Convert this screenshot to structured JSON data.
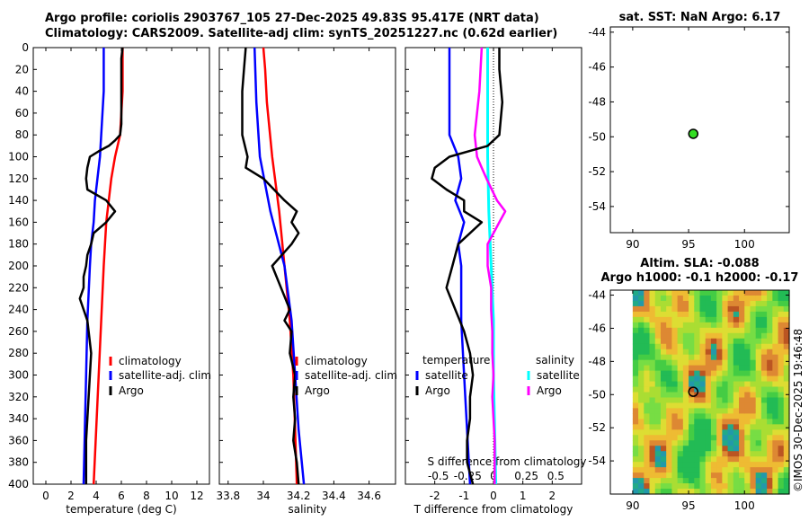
{
  "header": {
    "line1": "Argo profile: coriolis 2903767_105 27-Dec-2025 49.83S 95.417E (NRT data)",
    "line2": "Climatology: CARS2009. Satellite-adj clim: synTS_20251227.nc (0.62d earlier)"
  },
  "credit": "©IMOS 30-Dec-2025 19:46:48",
  "colors": {
    "argo": "#000000",
    "clim": "#ff0000",
    "sat_t": "#0000ff",
    "sat_s": "#00ffff",
    "argo_s": "#ff00ff",
    "marker": "#33dd22"
  },
  "chart_data": [
    {
      "id": "temperature",
      "type": "line",
      "xlabel": "temperature (deg C)",
      "xlim": [
        -1,
        13
      ],
      "xticks": [
        "0",
        "2",
        "4",
        "6",
        "8",
        "10",
        "12"
      ],
      "xtick_values": [
        0,
        2,
        4,
        6,
        8,
        10,
        12
      ],
      "ylim": [
        0,
        400
      ],
      "yticks": [
        "0",
        "20",
        "40",
        "60",
        "80",
        "100",
        "120",
        "140",
        "160",
        "180",
        "200",
        "220",
        "240",
        "260",
        "280",
        "300",
        "320",
        "340",
        "360",
        "380",
        "400"
      ],
      "ytick_values": [
        0,
        20,
        40,
        60,
        80,
        100,
        120,
        140,
        160,
        180,
        200,
        220,
        240,
        260,
        280,
        300,
        320,
        340,
        360,
        380,
        400
      ],
      "legend": [
        "climatology",
        "satellite-adj. clim",
        "Argo"
      ],
      "series": [
        {
          "name": "climatology",
          "depth": [
            0,
            20,
            40,
            60,
            80,
            90,
            100,
            120,
            140,
            160,
            200,
            250,
            300,
            350,
            400
          ],
          "values": [
            6.1,
            6.1,
            6.1,
            6.0,
            5.9,
            5.7,
            5.5,
            5.2,
            5.0,
            4.8,
            4.6,
            4.4,
            4.2,
            4.0,
            3.8
          ]
        },
        {
          "name": "satellite-adj. clim",
          "depth": [
            0,
            20,
            40,
            60,
            80,
            100,
            120,
            140,
            160,
            180,
            200,
            250,
            300,
            350,
            400
          ],
          "values": [
            4.6,
            4.6,
            4.6,
            4.5,
            4.4,
            4.3,
            4.1,
            3.9,
            3.8,
            3.6,
            3.5,
            3.3,
            3.2,
            3.1,
            3.0
          ]
        },
        {
          "name": "Argo",
          "depth": [
            0,
            10,
            30,
            50,
            70,
            80,
            85,
            90,
            95,
            100,
            105,
            110,
            120,
            130,
            140,
            150,
            160,
            170,
            180,
            190,
            200,
            210,
            220,
            230,
            240,
            250,
            260,
            280,
            300,
            320,
            340,
            360,
            380,
            400
          ],
          "values": [
            6.1,
            6.0,
            6.0,
            6.0,
            6.0,
            5.9,
            5.5,
            5.0,
            4.2,
            3.5,
            3.4,
            3.3,
            3.2,
            3.3,
            4.8,
            5.5,
            4.8,
            3.8,
            3.6,
            3.3,
            3.2,
            3.0,
            3.0,
            2.7,
            3.0,
            3.3,
            3.4,
            3.6,
            3.5,
            3.4,
            3.3,
            3.2,
            3.2,
            3.2
          ]
        }
      ]
    },
    {
      "id": "salinity",
      "type": "line",
      "xlabel": "salinity",
      "xlim": [
        33.75,
        34.75
      ],
      "xticks": [
        "33.8",
        "34",
        "34.2",
        "34.4",
        "34.6"
      ],
      "xtick_values": [
        33.8,
        34.0,
        34.2,
        34.4,
        34.6
      ],
      "ylim": [
        0,
        400
      ],
      "legend": [
        "climatology",
        "satellite-adj. clim",
        "Argo"
      ],
      "series": [
        {
          "name": "climatology",
          "depth": [
            0,
            20,
            50,
            100,
            150,
            200,
            250,
            300,
            350,
            400
          ],
          "values": [
            34.0,
            34.01,
            34.02,
            34.05,
            34.09,
            34.12,
            34.15,
            34.17,
            34.18,
            34.19
          ]
        },
        {
          "name": "satellite-adj. clim",
          "depth": [
            0,
            50,
            100,
            150,
            200,
            250,
            300,
            350,
            400
          ],
          "values": [
            33.95,
            33.96,
            33.98,
            34.04,
            34.12,
            34.16,
            34.18,
            34.2,
            34.23
          ]
        },
        {
          "name": "Argo",
          "depth": [
            0,
            20,
            40,
            60,
            80,
            100,
            110,
            120,
            140,
            150,
            160,
            170,
            180,
            200,
            220,
            240,
            250,
            260,
            280,
            300,
            320,
            340,
            360,
            380,
            400
          ],
          "values": [
            33.9,
            33.89,
            33.88,
            33.88,
            33.88,
            33.91,
            33.9,
            34.0,
            34.12,
            34.19,
            34.16,
            34.2,
            34.16,
            34.05,
            34.1,
            34.15,
            34.12,
            34.16,
            34.15,
            34.18,
            34.17,
            34.18,
            34.17,
            34.19,
            34.2
          ]
        }
      ]
    },
    {
      "id": "difference",
      "type": "line",
      "xlabel": "T difference from climatology",
      "xlim": [
        -3,
        3
      ],
      "xticks": [
        "-2",
        "-1",
        "0",
        "1",
        "2"
      ],
      "xtick_values": [
        -2,
        -1,
        0,
        1,
        2
      ],
      "top_xlabel": "S difference from climatology",
      "top_xticks": [
        "-0.5",
        "-0.25",
        "0",
        "0.25",
        "0.5"
      ],
      "top_xtick_values": [
        -0.5,
        -0.25,
        0,
        0.25,
        0.5
      ],
      "top_xlim": [
        -0.75,
        0.75
      ],
      "ylim": [
        0,
        400
      ],
      "legend_left_title": "temperature",
      "legend_right_title": "salinity",
      "legend_left": [
        "satellite",
        "Argo"
      ],
      "legend_right": [
        "satellite",
        "Argo"
      ],
      "series": [
        {
          "name": "temperature satellite",
          "axis": "T",
          "depth": [
            0,
            20,
            40,
            60,
            80,
            100,
            120,
            140,
            160,
            180,
            200,
            250,
            300,
            350,
            400
          ],
          "values": [
            -1.5,
            -1.5,
            -1.5,
            -1.5,
            -1.5,
            -1.2,
            -1.1,
            -1.3,
            -1.0,
            -1.2,
            -1.1,
            -1.1,
            -1.0,
            -0.9,
            -0.8
          ]
        },
        {
          "name": "temperature Argo",
          "axis": "T",
          "depth": [
            0,
            20,
            50,
            80,
            90,
            100,
            110,
            120,
            130,
            140,
            150,
            160,
            180,
            200,
            220,
            240,
            260,
            280,
            300,
            320,
            340,
            360,
            380,
            400
          ],
          "values": [
            0.2,
            0.2,
            0.3,
            0.2,
            -0.2,
            -1.5,
            -2.0,
            -2.1,
            -1.6,
            -1.0,
            -1.0,
            -0.4,
            -1.2,
            -1.4,
            -1.6,
            -1.3,
            -1.0,
            -0.8,
            -0.7,
            -0.8,
            -0.8,
            -0.9,
            -0.9,
            -0.7
          ]
        },
        {
          "name": "salinity satellite",
          "axis": "S",
          "depth": [
            0,
            50,
            100,
            150,
            200,
            250,
            300,
            350,
            400
          ],
          "values": [
            -0.05,
            -0.05,
            -0.05,
            -0.04,
            -0.02,
            0.0,
            0.0,
            0.01,
            0.02
          ]
        },
        {
          "name": "salinity Argo",
          "axis": "S",
          "depth": [
            0,
            20,
            40,
            60,
            80,
            100,
            110,
            120,
            140,
            150,
            160,
            180,
            200,
            220,
            240,
            260,
            280,
            300,
            320,
            340,
            360,
            380,
            400
          ],
          "values": [
            -0.1,
            -0.11,
            -0.12,
            -0.14,
            -0.16,
            -0.14,
            -0.1,
            -0.06,
            0.03,
            0.1,
            0.05,
            -0.05,
            -0.05,
            -0.02,
            -0.02,
            -0.01,
            -0.01,
            0.0,
            -0.01,
            0.0,
            0.01,
            0.01,
            0.01
          ]
        }
      ]
    },
    {
      "id": "sst-map",
      "type": "scatter",
      "title": "sat. SST: NaN Argo: 6.17",
      "xlim": [
        88,
        104
      ],
      "ylim": [
        -55.5,
        -43.7
      ],
      "xticks": [
        "90",
        "95",
        "100"
      ],
      "xtick_values": [
        90,
        95,
        100
      ],
      "yticks": [
        "-44",
        "-46",
        "-48",
        "-50",
        "-52",
        "-54"
      ],
      "ytick_values": [
        -44,
        -46,
        -48,
        -50,
        -52,
        -54
      ],
      "points": [
        {
          "lon": 95.417,
          "lat": -49.83
        }
      ]
    },
    {
      "id": "sla-map",
      "type": "heatmap",
      "title1": "Altim. SLA: -0.088",
      "title2": "Argo h1000: -0.1 h2000: -0.17",
      "xlim": [
        88,
        104
      ],
      "ylim": [
        -56,
        -43.7
      ],
      "xticks": [
        "90",
        "95",
        "100"
      ],
      "xtick_values": [
        90,
        95,
        100
      ],
      "yticks": [
        "-44",
        "-46",
        "-48",
        "-50",
        "-52",
        "-54"
      ],
      "ytick_values": [
        -44,
        -46,
        -48,
        -50,
        -52,
        -54
      ],
      "data_lon_range": [
        90,
        104
      ],
      "points": [
        {
          "lon": 95.417,
          "lat": -49.83
        }
      ]
    }
  ]
}
